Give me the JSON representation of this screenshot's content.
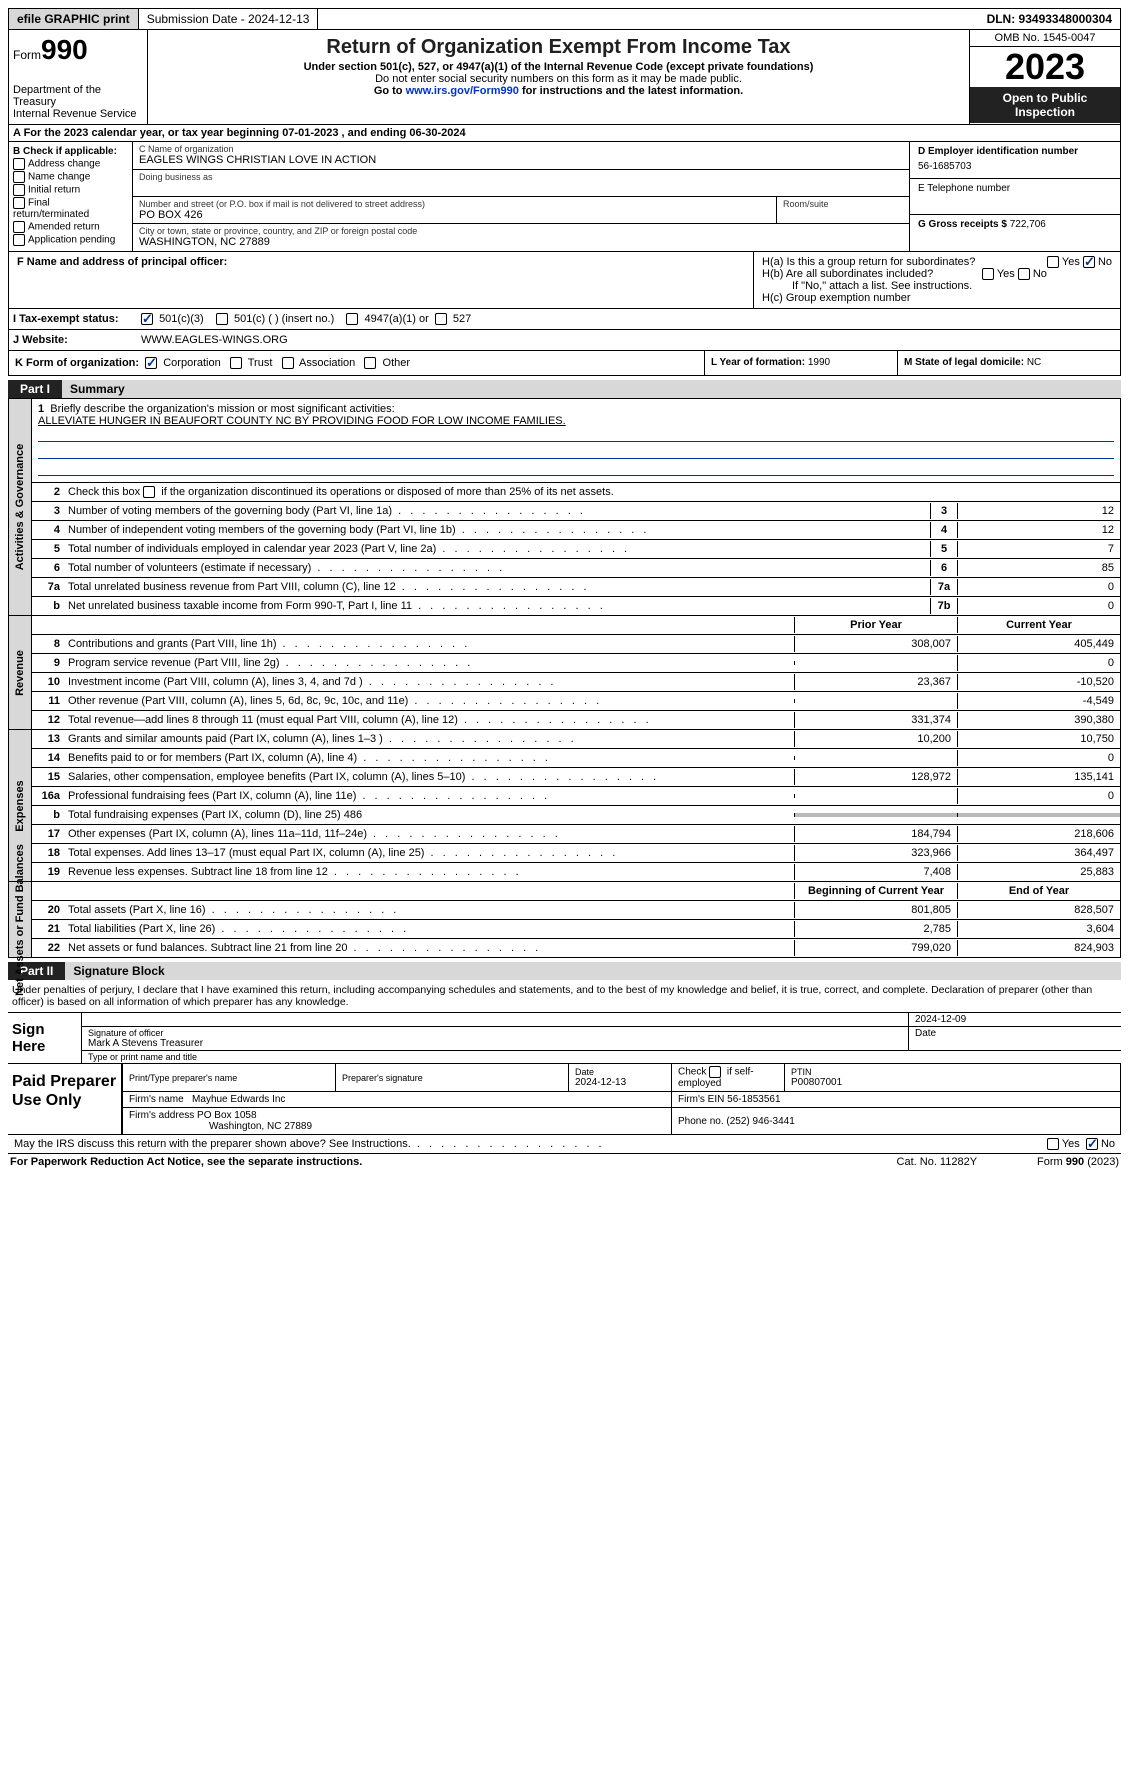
{
  "topbar": {
    "efile": "efile GRAPHIC print",
    "submission": "Submission Date - 2024-12-13",
    "dln": "DLN: 93493348000304"
  },
  "header": {
    "form_word": "Form",
    "form_num": "990",
    "title": "Return of Organization Exempt From Income Tax",
    "sub": "Under section 501(c), 527, or 4947(a)(1) of the Internal Revenue Code (except private foundations)",
    "line2": "Do not enter social security numbers on this form as it may be made public.",
    "line3_pre": "Go to ",
    "line3_link": "www.irs.gov/Form990",
    "line3_post": " for instructions and the latest information.",
    "dept": "Department of the Treasury\nInternal Revenue Service",
    "omb": "OMB No. 1545-0047",
    "year": "2023",
    "opentopublic": "Open to Public Inspection"
  },
  "sectionA": "A For the 2023 calendar year, or tax year beginning 07-01-2023   , and ending 06-30-2024",
  "boxB": {
    "header": "B Check if applicable:",
    "items": [
      "Address change",
      "Name change",
      "Initial return",
      "Final return/terminated",
      "Amended return",
      "Application pending"
    ]
  },
  "boxC": {
    "name_lbl": "C Name of organization",
    "name": "EAGLES WINGS CHRISTIAN LOVE IN ACTION",
    "dba_lbl": "Doing business as",
    "dba": "",
    "addr_lbl": "Number and street (or P.O. box if mail is not delivered to street address)",
    "addr": "PO BOX 426",
    "room_lbl": "Room/suite",
    "city_lbl": "City or town, state or province, country, and ZIP or foreign postal code",
    "city": "WASHINGTON, NC  27889",
    "principal_lbl": "F  Name and address of principal officer:",
    "principal": ""
  },
  "boxD": {
    "ein_lbl": "D Employer identification number",
    "ein": "56-1685703",
    "tel_lbl": "E Telephone number",
    "tel": "",
    "gross_lbl": "G Gross receipts $",
    "gross": "722,706"
  },
  "boxH": {
    "a_lbl": "H(a)  Is this a group return for subordinates?",
    "b_lbl": "H(b)  Are all subordinates included?",
    "b_note": "If \"No,\" attach a list. See instructions.",
    "c_lbl": "H(c)  Group exemption number",
    "yes": "Yes",
    "no": "No"
  },
  "rowI": {
    "lbl": "I  Tax-exempt status:",
    "o1": "501(c)(3)",
    "o2": "501(c) (  ) (insert no.)",
    "o3": "4947(a)(1) or",
    "o4": "527"
  },
  "rowJ": {
    "lbl": "J  Website:",
    "val": "WWW.EAGLES-WINGS.ORG"
  },
  "rowK": {
    "lbl": "K Form of organization:",
    "o1": "Corporation",
    "o2": "Trust",
    "o3": "Association",
    "o4": "Other",
    "l_lbl": "L Year of formation: ",
    "l_val": "1990",
    "m_lbl": "M State of legal domicile: ",
    "m_val": "NC"
  },
  "part1": {
    "label": "Part I",
    "title": "Summary"
  },
  "summary": {
    "gov_label": "Activities & Governance",
    "rev_label": "Revenue",
    "exp_label": "Expenses",
    "na_label": "Net Assets or Fund Balances",
    "line1_lbl": "Briefly describe the organization's mission or most significant activities:",
    "line1_val": "ALLEVIATE HUNGER IN BEAUFORT COUNTY NC BY PROVIDING FOOD FOR LOW INCOME FAMILIES.",
    "line2": "Check this box          if the organization discontinued its operations or disposed of more than 25% of its net assets.",
    "line3": "Number of voting members of the governing body (Part VI, line 1a)",
    "line3_v": "12",
    "line4": "Number of independent voting members of the governing body (Part VI, line 1b)",
    "line4_v": "12",
    "line5": "Total number of individuals employed in calendar year 2023 (Part V, line 2a)",
    "line5_v": "7",
    "line6": "Total number of volunteers (estimate if necessary)",
    "line6_v": "85",
    "line7a": "Total unrelated business revenue from Part VIII, column (C), line 12",
    "line7a_v": "0",
    "line7b": "Net unrelated business taxable income from Form 990-T, Part I, line 11",
    "line7b_v": "0",
    "prior_hdr": "Prior Year",
    "curr_hdr": "Current Year",
    "rows_rev": [
      {
        "n": "8",
        "d": "Contributions and grants (Part VIII, line 1h)",
        "p": "308,007",
        "c": "405,449"
      },
      {
        "n": "9",
        "d": "Program service revenue (Part VIII, line 2g)",
        "p": "",
        "c": "0"
      },
      {
        "n": "10",
        "d": "Investment income (Part VIII, column (A), lines 3, 4, and 7d )",
        "p": "23,367",
        "c": "-10,520"
      },
      {
        "n": "11",
        "d": "Other revenue (Part VIII, column (A), lines 5, 6d, 8c, 9c, 10c, and 11e)",
        "p": "",
        "c": "-4,549"
      },
      {
        "n": "12",
        "d": "Total revenue—add lines 8 through 11 (must equal Part VIII, column (A), line 12)",
        "p": "331,374",
        "c": "390,380"
      }
    ],
    "rows_exp": [
      {
        "n": "13",
        "d": "Grants and similar amounts paid (Part IX, column (A), lines 1–3 )",
        "p": "10,200",
        "c": "10,750"
      },
      {
        "n": "14",
        "d": "Benefits paid to or for members (Part IX, column (A), line 4)",
        "p": "",
        "c": "0"
      },
      {
        "n": "15",
        "d": "Salaries, other compensation, employee benefits (Part IX, column (A), lines 5–10)",
        "p": "128,972",
        "c": "135,141"
      },
      {
        "n": "16a",
        "d": "Professional fundraising fees (Part IX, column (A), line 11e)",
        "p": "",
        "c": "0"
      },
      {
        "n": "b",
        "d": "Total fundraising expenses (Part IX, column (D), line 25) 486",
        "grey": true
      },
      {
        "n": "17",
        "d": "Other expenses (Part IX, column (A), lines 11a–11d, 11f–24e)",
        "p": "184,794",
        "c": "218,606"
      },
      {
        "n": "18",
        "d": "Total expenses. Add lines 13–17 (must equal Part IX, column (A), line 25)",
        "p": "323,966",
        "c": "364,497"
      },
      {
        "n": "19",
        "d": "Revenue less expenses. Subtract line 18 from line 12",
        "p": "7,408",
        "c": "25,883"
      }
    ],
    "bcy_hdr": "Beginning of Current Year",
    "eoy_hdr": "End of Year",
    "rows_na": [
      {
        "n": "20",
        "d": "Total assets (Part X, line 16)",
        "p": "801,805",
        "c": "828,507"
      },
      {
        "n": "21",
        "d": "Total liabilities (Part X, line 26)",
        "p": "2,785",
        "c": "3,604"
      },
      {
        "n": "22",
        "d": "Net assets or fund balances. Subtract line 21 from line 20",
        "p": "799,020",
        "c": "824,903"
      }
    ]
  },
  "part2": {
    "label": "Part II",
    "title": "Signature Block"
  },
  "sigtext": "Under penalties of perjury, I declare that I have examined this return, including accompanying schedules and statements, and to the best of my knowledge and belief, it is true, correct, and complete. Declaration of preparer (other than officer) is based on all information of which preparer has any knowledge.",
  "sign": {
    "lbl": "Sign Here",
    "sig_of_officer": "Signature of officer",
    "officer_name": "Mark A Stevens  Treasurer",
    "type_name": "Type or print name and title",
    "date_lbl": "Date",
    "date": "2024-12-09"
  },
  "paid": {
    "lbl": "Paid Preparer Use Only",
    "print_lbl": "Print/Type preparer's name",
    "print_val": "",
    "sig_lbl": "Preparer's signature",
    "date_lbl": "Date",
    "date": "2024-12-13",
    "check_lbl": "Check         if self-employed",
    "ptin_lbl": "PTIN",
    "ptin": "P00807001",
    "firm_name_lbl": "Firm's name",
    "firm_name": "Mayhue Edwards Inc",
    "firm_ein_lbl": "Firm's EIN",
    "firm_ein": "56-1853561",
    "firm_addr_lbl": "Firm's address",
    "firm_addr1": "PO Box 1058",
    "firm_addr2": "Washington, NC  27889",
    "phone_lbl": "Phone no.",
    "phone": "(252) 946-3441"
  },
  "discuss": {
    "text": "May the IRS discuss this return with the preparer shown above? See Instructions.",
    "yes": "Yes",
    "no": "No"
  },
  "footer": {
    "left": "For Paperwork Reduction Act Notice, see the separate instructions.",
    "mid": "Cat. No. 11282Y",
    "right_pre": "Form ",
    "right_form": "990",
    "right_post": " (2023)"
  }
}
